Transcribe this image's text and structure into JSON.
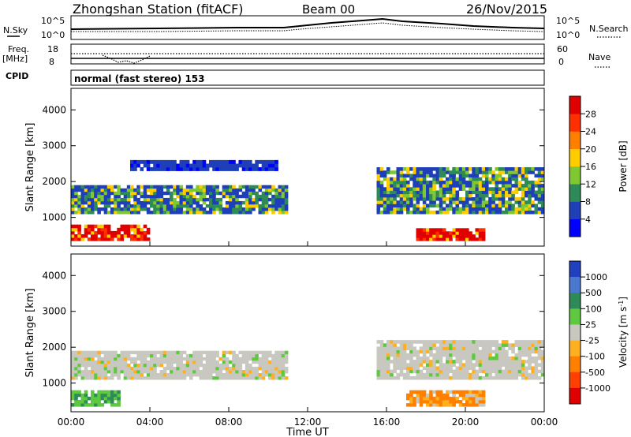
{
  "header": {
    "station": "Zhongshan Station (fitACF)",
    "beam": "Beam 00",
    "date": "26/Nov/2015"
  },
  "noise_panel": {
    "left_label": "N.Sky",
    "right_label": "N.Search",
    "tick_top": "10^5",
    "tick_bottom": "10^0"
  },
  "freq_panel": {
    "left_label_1": "Freq.",
    "left_label_2": "[MHz]",
    "tick_top": "18",
    "tick_bottom": "8",
    "right_label": "Nave",
    "right_tick_top": "60",
    "right_tick_bottom": "0"
  },
  "cpid_panel": {
    "left_label": "CPID",
    "text": "normal (fast stereo) 153"
  },
  "colorbars": {
    "power": {
      "label": "Power [dB]",
      "ticks": [
        "28",
        "24",
        "20",
        "16",
        "12",
        "8",
        "4"
      ],
      "colors": [
        "#0000ff",
        "#1f3fb8",
        "#2e8b57",
        "#7fc832",
        "#ffcc00",
        "#ff8000",
        "#ff3000",
        "#e00000"
      ]
    },
    "velocity": {
      "label": "Velocity [m s-1]",
      "label_main": "Velocity [m s",
      "label_sup": "-1",
      "label_end": "]",
      "ticks": [
        "1000",
        "500",
        "100",
        "25",
        "-25",
        "-100",
        "-500",
        "-1000"
      ],
      "colors": [
        "#2040c0",
        "#4a78d0",
        "#2e8b57",
        "#5ec840",
        "#c8c8c0",
        "#ffb020",
        "#ff8000",
        "#ff4000",
        "#e00000"
      ]
    }
  },
  "chart_data": [
    {
      "type": "heatmap",
      "title": "Power",
      "xlabel": "Time UT",
      "ylabel": "Slant Range [km]",
      "x_ticks": [
        "00:00",
        "04:00",
        "08:00",
        "12:00",
        "16:00",
        "20:00",
        "00:00"
      ],
      "y_ticks": [
        1000,
        2000,
        3000,
        4000
      ],
      "ylim": [
        200,
        4600
      ],
      "xlim_hours": [
        0,
        24
      ],
      "regions": [
        {
          "t0": 0.0,
          "t1": 11.0,
          "r0": 1100,
          "r1": 1900,
          "value": "power_mid"
        },
        {
          "t0": 0.0,
          "t1": 4.0,
          "r0": 350,
          "r1": 800,
          "value": "power_high"
        },
        {
          "t0": 3.0,
          "t1": 10.5,
          "r0": 2300,
          "r1": 2600,
          "value": "power_low"
        },
        {
          "t0": 15.5,
          "t1": 24.0,
          "r0": 1100,
          "r1": 2400,
          "value": "power_mid"
        },
        {
          "t0": 17.5,
          "t1": 21.0,
          "r0": 350,
          "r1": 700,
          "value": "power_high"
        }
      ]
    },
    {
      "type": "heatmap",
      "title": "Velocity",
      "xlabel": "Time UT",
      "ylabel": "Slant Range [km]",
      "x_ticks": [
        "00:00",
        "04:00",
        "08:00",
        "12:00",
        "16:00",
        "20:00",
        "00:00"
      ],
      "y_ticks": [
        1000,
        2000,
        3000,
        4000
      ],
      "ylim": [
        200,
        4600
      ],
      "xlim_hours": [
        0,
        24
      ],
      "regions": [
        {
          "t0": 0.0,
          "t1": 11.0,
          "r0": 1100,
          "r1": 1900,
          "value": "velocity_near_zero"
        },
        {
          "t0": 0.0,
          "t1": 2.5,
          "r0": 350,
          "r1": 800,
          "value": "velocity_100_500"
        },
        {
          "t0": 15.5,
          "t1": 24.0,
          "r0": 1100,
          "r1": 2200,
          "value": "velocity_near_zero"
        },
        {
          "t0": 17.0,
          "t1": 21.0,
          "r0": 350,
          "r1": 800,
          "value": "velocity_negative"
        }
      ]
    }
  ]
}
